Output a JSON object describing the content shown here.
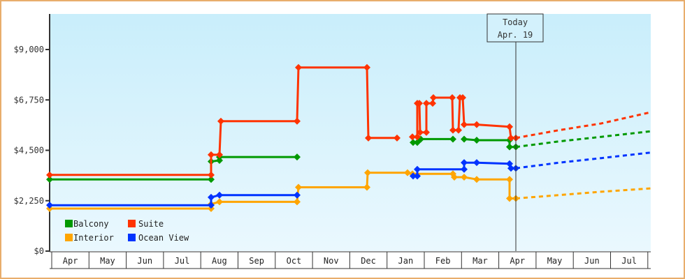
{
  "chart_data": {
    "type": "line",
    "title": "",
    "xlabel": "",
    "ylabel": "",
    "ylim": [
      0,
      10200
    ],
    "y_ticks": [
      {
        "value": 0,
        "label": "$0"
      },
      {
        "value": 2250,
        "label": "$2,250"
      },
      {
        "value": 4500,
        "label": "$4,500"
      },
      {
        "value": 6750,
        "label": "$6,750"
      },
      {
        "value": 9000,
        "label": "$9,000"
      }
    ],
    "months": [
      "Apr",
      "May",
      "Jun",
      "Jul",
      "Aug",
      "Sep",
      "Oct",
      "Nov",
      "Dec",
      "Jan",
      "Feb",
      "Mar",
      "Apr",
      "May",
      "Jun",
      "Jul"
    ],
    "grid": false,
    "legend_position": "lower-left",
    "today_marker": {
      "line1": "Today",
      "line2": "Apr. 19",
      "x": 738
    },
    "series": [
      {
        "name": "Balcony",
        "color": "#009900",
        "step_points": [
          [
            71,
            3200
          ],
          [
            302,
            3200
          ],
          [
            302,
            4000
          ],
          [
            314,
            4050
          ],
          [
            314,
            4200
          ],
          [
            425,
            4200
          ],
          [
            null,
            null
          ],
          [
            591,
            4850
          ],
          [
            597,
            4850
          ],
          [
            602,
            5000
          ],
          [
            648,
            5000
          ],
          [
            null,
            null
          ],
          [
            664,
            5000
          ],
          [
            682,
            4950
          ],
          [
            729,
            4950
          ],
          [
            729,
            4650
          ],
          [
            738,
            4650
          ]
        ],
        "forecast": [
          [
            738,
            4650
          ],
          [
            800,
            4900
          ],
          [
            860,
            5100
          ],
          [
            931,
            5350
          ]
        ]
      },
      {
        "name": "Suite",
        "color": "#ff3300",
        "step_points": [
          [
            71,
            3400
          ],
          [
            302,
            3400
          ],
          [
            302,
            4300
          ],
          [
            314,
            4300
          ],
          [
            316,
            5800
          ],
          [
            425,
            5800
          ],
          [
            427,
            8200
          ],
          [
            525,
            8200
          ],
          [
            527,
            5050
          ],
          [
            568,
            5050
          ],
          [
            null,
            null
          ],
          [
            590,
            5100
          ],
          [
            597,
            5100
          ],
          [
            597,
            6600
          ],
          [
            600,
            6600
          ],
          [
            601,
            5300
          ],
          [
            610,
            5300
          ],
          [
            610,
            6600
          ],
          [
            619,
            6600
          ],
          [
            620,
            6850
          ],
          [
            647,
            6850
          ],
          [
            648,
            5400
          ],
          [
            656,
            5400
          ],
          [
            658,
            6850
          ],
          [
            662,
            6850
          ],
          [
            664,
            5650
          ],
          [
            682,
            5650
          ],
          [
            729,
            5550
          ],
          [
            731,
            5050
          ],
          [
            738,
            5050
          ]
        ],
        "forecast": [
          [
            738,
            5050
          ],
          [
            800,
            5400
          ],
          [
            860,
            5700
          ],
          [
            931,
            6200
          ]
        ]
      },
      {
        "name": "Interior",
        "color": "#ffa500",
        "step_points": [
          [
            71,
            1900
          ],
          [
            302,
            1900
          ],
          [
            302,
            2100
          ],
          [
            314,
            2200
          ],
          [
            425,
            2200
          ],
          [
            427,
            2850
          ],
          [
            525,
            2850
          ],
          [
            526,
            3500
          ],
          [
            583,
            3500
          ],
          [
            590,
            3450
          ],
          [
            648,
            3450
          ],
          [
            650,
            3300
          ],
          [
            664,
            3300
          ],
          [
            682,
            3200
          ],
          [
            729,
            3200
          ],
          [
            729,
            2350
          ],
          [
            738,
            2350
          ]
        ],
        "forecast": [
          [
            738,
            2350
          ],
          [
            800,
            2500
          ],
          [
            860,
            2650
          ],
          [
            931,
            2800
          ]
        ]
      },
      {
        "name": "Ocean View",
        "color": "#0033ff",
        "step_points": [
          [
            71,
            2050
          ],
          [
            302,
            2050
          ],
          [
            302,
            2400
          ],
          [
            314,
            2500
          ],
          [
            425,
            2500
          ],
          [
            null,
            null
          ],
          [
            591,
            3350
          ],
          [
            597,
            3350
          ],
          [
            597,
            3650
          ],
          [
            664,
            3650
          ],
          [
            664,
            3950
          ],
          [
            682,
            3950
          ],
          [
            729,
            3900
          ],
          [
            731,
            3700
          ],
          [
            738,
            3700
          ]
        ],
        "forecast": [
          [
            738,
            3700
          ],
          [
            800,
            3950
          ],
          [
            860,
            4150
          ],
          [
            931,
            4400
          ]
        ]
      }
    ]
  },
  "legend": {
    "items": [
      {
        "label": "Balcony",
        "color": "#009900"
      },
      {
        "label": "Suite",
        "color": "#ff3300"
      },
      {
        "label": "Interior",
        "color": "#ffa500"
      },
      {
        "label": "Ocean View",
        "color": "#0033ff"
      }
    ]
  },
  "colors": {
    "frame_border": "#e8ad6c",
    "plot_bg_top": "#c9eefb",
    "plot_bg_bottom": "#eaf8fe",
    "axis": "#333333"
  }
}
